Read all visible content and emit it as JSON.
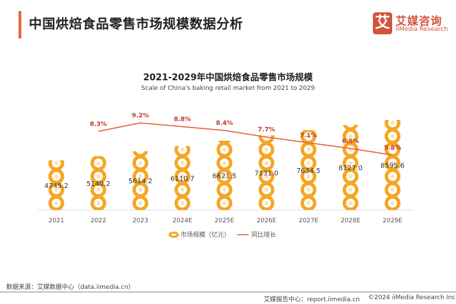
{
  "header": {
    "title": "中国烘焙食品零售市场规模数据分析"
  },
  "logo": {
    "mark": "艾",
    "cn": "艾媒咨询",
    "en": "iiMedia Research"
  },
  "chart_data": {
    "type": "bar",
    "title": "2021-2029年中国烘焙食品零售市场规模",
    "subtitle": "Scale of China's baking retail market from 2021 to 2029",
    "categories": [
      "2021",
      "2022",
      "2023",
      "2024E",
      "2025E",
      "2026E",
      "2027E",
      "2028E",
      "2029E"
    ],
    "series": [
      {
        "name": "市场规模（亿元）",
        "type": "pictograph-bar",
        "color": "#f5a623",
        "values": [
          4745.2,
          5140.2,
          5614.2,
          6110.7,
          6621.5,
          7131.0,
          7634.5,
          8127.0,
          8595.6
        ],
        "labels": [
          "4745.2",
          "5140.2",
          "5614.2",
          "6110.7",
          "6621.5",
          "7131.0",
          "7634.5",
          "8127.0",
          "8595.6"
        ]
      },
      {
        "name": "同比增长",
        "type": "line",
        "color": "#e8643a",
        "values": [
          null,
          8.3,
          9.2,
          8.8,
          8.4,
          7.7,
          7.1,
          6.5,
          5.8
        ],
        "labels": [
          "",
          "8.3%",
          "9.2%",
          "8.8%",
          "8.4%",
          "7.7%",
          "7.1%",
          "6.5%",
          "5.8%"
        ]
      }
    ],
    "legend": "bottom",
    "grid": false
  },
  "footer": {
    "source": "数据来源：艾媒数据中心（data.iimedia.cn）",
    "report": "艾媒报告中心：report.iimedia.cn",
    "copyright": "©2024 iiMedia Research Inc"
  }
}
